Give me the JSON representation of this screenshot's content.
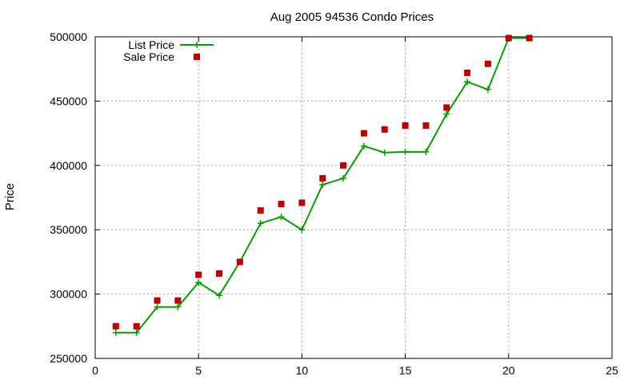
{
  "chart_data": {
    "type": "line",
    "title": "Aug 2005 94536 Condo Prices",
    "xlabel": "",
    "ylabel": "Price",
    "xlim": [
      0,
      25
    ],
    "ylim": [
      250000,
      500000
    ],
    "x_ticks": [
      0,
      5,
      10,
      15,
      20,
      25
    ],
    "y_ticks": [
      250000,
      300000,
      350000,
      400000,
      450000,
      500000
    ],
    "grid": true,
    "legend_position": "top-left",
    "series": [
      {
        "name": "List Price",
        "style": "line-plus",
        "color": "#00a000",
        "x": [
          1,
          2,
          3,
          4,
          5,
          6,
          7,
          8,
          9,
          10,
          11,
          12,
          13,
          14,
          15,
          16,
          17,
          18,
          19,
          20,
          21
        ],
        "y": [
          270000,
          270000,
          290000,
          290000,
          309000,
          299000,
          325000,
          355000,
          360000,
          350000,
          385000,
          390000,
          415000,
          410000,
          410500,
          410500,
          440000,
          465000,
          459000,
          499000,
          499000
        ]
      },
      {
        "name": "Sale Price",
        "style": "square",
        "color": "#c00000",
        "x": [
          1,
          2,
          3,
          4,
          5,
          6,
          7,
          8,
          9,
          10,
          11,
          12,
          13,
          14,
          15,
          16,
          17,
          18,
          19,
          20,
          21
        ],
        "y": [
          275000,
          275000,
          295000,
          295000,
          315000,
          316000,
          325000,
          365000,
          370000,
          371000,
          390000,
          400000,
          425000,
          428000,
          431000,
          431000,
          445000,
          472000,
          479000,
          499000,
          499000
        ]
      }
    ]
  }
}
